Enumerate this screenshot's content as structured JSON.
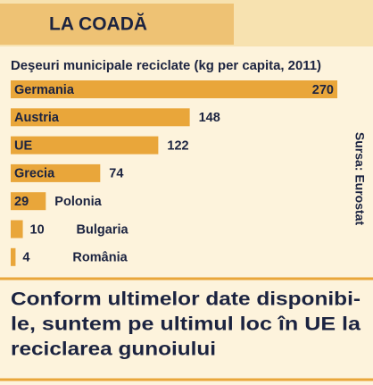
{
  "chart_data": {
    "type": "hbar",
    "header": "LA COADĂ",
    "title": "Deşeuri municipale reciclate (kg per capita, 2011)",
    "categories": [
      "Germania",
      "Austria",
      "UE",
      "Grecia",
      "Polonia",
      "Bulgaria",
      "România"
    ],
    "values": [
      270,
      148,
      122,
      74,
      29,
      10,
      4
    ],
    "color": "#e9a63a",
    "source": "Sursa: Eurostat",
    "caption": [
      "Conform ultimelor date disponibi-",
      "le, suntem pe ultimul loc în UE la",
      "reciclarea gunoiului"
    ]
  }
}
